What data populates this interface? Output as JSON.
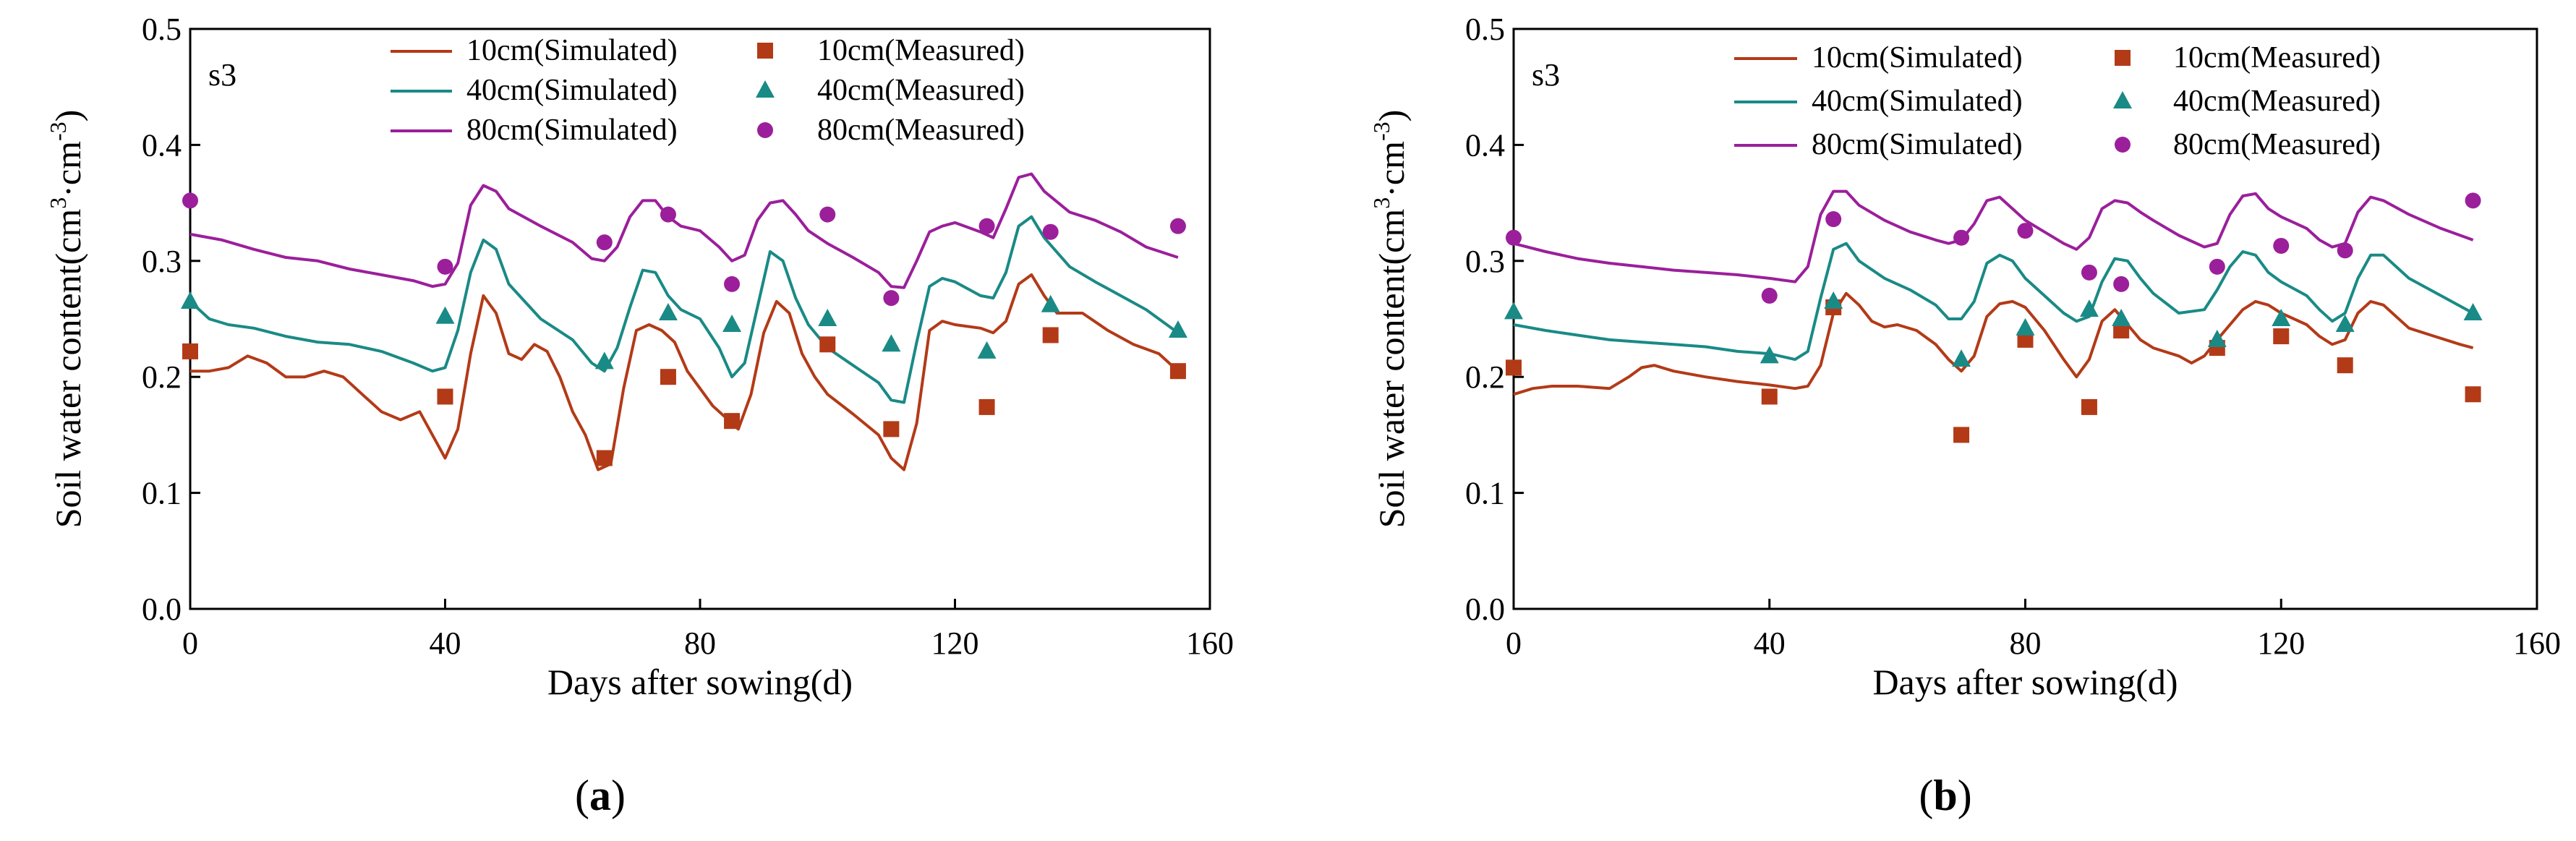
{
  "colors": {
    "s10": "#b33a17",
    "s40": "#1a8a86",
    "s80": "#9b1f9b",
    "axis": "#000000"
  },
  "chart_data": [
    {
      "type": "line",
      "panel_label": "s3",
      "caption_letter": "a",
      "caption_open": "(",
      "caption_close": ")",
      "xlabel": "Days after sowing(d)",
      "ylabel": "Soil water content(cm",
      "ylabel_sup1": "3",
      "ylabel_mid": "·cm",
      "ylabel_sup2": "-3",
      "ylabel_end": ")",
      "xlim": [
        0,
        160
      ],
      "ylim": [
        0.0,
        0.5
      ],
      "xticks": [
        "0",
        "40",
        "80",
        "120",
        "160"
      ],
      "yticks": [
        "0.0",
        "0.1",
        "0.2",
        "0.3",
        "0.4",
        "0.5"
      ],
      "series": [
        {
          "name": "10cm(Simulated)",
          "kind": "line",
          "color_key": "s10",
          "x": [
            0,
            3,
            6,
            9,
            12,
            15,
            18,
            21,
            24,
            27,
            30,
            33,
            36,
            39,
            40,
            42,
            44,
            46,
            48,
            50,
            52,
            54,
            56,
            58,
            60,
            62,
            64,
            66,
            68,
            70,
            72,
            74,
            76,
            78,
            80,
            82,
            84,
            86,
            88,
            90,
            92,
            94,
            96,
            98,
            100,
            104,
            108,
            110,
            112,
            114,
            116,
            118,
            120,
            124,
            126,
            128,
            130,
            132,
            134,
            136,
            138,
            140,
            144,
            148,
            152,
            155
          ],
          "y": [
            0.205,
            0.205,
            0.208,
            0.218,
            0.212,
            0.2,
            0.2,
            0.205,
            0.2,
            0.185,
            0.17,
            0.163,
            0.17,
            0.14,
            0.13,
            0.155,
            0.22,
            0.27,
            0.255,
            0.22,
            0.215,
            0.228,
            0.222,
            0.2,
            0.17,
            0.15,
            0.12,
            0.125,
            0.19,
            0.24,
            0.245,
            0.24,
            0.23,
            0.205,
            0.19,
            0.175,
            0.165,
            0.155,
            0.185,
            0.238,
            0.265,
            0.255,
            0.22,
            0.2,
            0.185,
            0.168,
            0.15,
            0.13,
            0.12,
            0.16,
            0.24,
            0.248,
            0.245,
            0.242,
            0.238,
            0.248,
            0.28,
            0.288,
            0.27,
            0.255,
            0.255,
            0.255,
            0.24,
            0.228,
            0.22,
            0.205
          ]
        },
        {
          "name": "40cm(Simulated)",
          "kind": "line",
          "color_key": "s40",
          "x": [
            0,
            3,
            6,
            10,
            15,
            20,
            25,
            30,
            35,
            38,
            40,
            42,
            44,
            46,
            48,
            50,
            55,
            60,
            63,
            65,
            67,
            69,
            71,
            73,
            75,
            77,
            80,
            83,
            85,
            87,
            89,
            91,
            93,
            95,
            97,
            100,
            104,
            108,
            110,
            112,
            114,
            116,
            118,
            120,
            124,
            126,
            128,
            130,
            132,
            134,
            138,
            142,
            146,
            150,
            155
          ],
          "y": [
            0.265,
            0.25,
            0.245,
            0.242,
            0.235,
            0.23,
            0.228,
            0.222,
            0.212,
            0.205,
            0.208,
            0.24,
            0.29,
            0.318,
            0.31,
            0.28,
            0.25,
            0.232,
            0.212,
            0.205,
            0.225,
            0.26,
            0.292,
            0.29,
            0.27,
            0.258,
            0.25,
            0.225,
            0.2,
            0.212,
            0.26,
            0.308,
            0.3,
            0.268,
            0.245,
            0.225,
            0.21,
            0.195,
            0.18,
            0.178,
            0.23,
            0.278,
            0.285,
            0.282,
            0.27,
            0.268,
            0.29,
            0.33,
            0.338,
            0.32,
            0.295,
            0.282,
            0.27,
            0.258,
            0.238
          ]
        },
        {
          "name": "80cm(Simulated)",
          "kind": "line",
          "color_key": "s80",
          "x": [
            0,
            5,
            10,
            15,
            20,
            25,
            30,
            35,
            38,
            40,
            42,
            44,
            46,
            48,
            50,
            55,
            60,
            63,
            65,
            67,
            69,
            71,
            73,
            75,
            77,
            80,
            83,
            85,
            87,
            89,
            91,
            93,
            95,
            97,
            100,
            104,
            108,
            110,
            112,
            114,
            116,
            118,
            120,
            124,
            126,
            128,
            130,
            132,
            134,
            138,
            142,
            146,
            150,
            155
          ],
          "y": [
            0.323,
            0.318,
            0.31,
            0.303,
            0.3,
            0.293,
            0.288,
            0.283,
            0.278,
            0.28,
            0.298,
            0.348,
            0.365,
            0.36,
            0.345,
            0.33,
            0.316,
            0.302,
            0.3,
            0.312,
            0.338,
            0.352,
            0.352,
            0.338,
            0.33,
            0.326,
            0.312,
            0.3,
            0.305,
            0.335,
            0.35,
            0.352,
            0.34,
            0.326,
            0.315,
            0.303,
            0.29,
            0.278,
            0.277,
            0.3,
            0.325,
            0.33,
            0.333,
            0.325,
            0.32,
            0.345,
            0.372,
            0.375,
            0.36,
            0.342,
            0.335,
            0.325,
            0.312,
            0.303
          ]
        },
        {
          "name": "10cm(Measured)",
          "kind": "scatter",
          "marker": "square",
          "color_key": "s10",
          "x": [
            0,
            40,
            65,
            75,
            85,
            100,
            110,
            125,
            135,
            155
          ],
          "y": [
            0.222,
            0.183,
            0.13,
            0.2,
            0.162,
            0.228,
            0.155,
            0.174,
            0.236,
            0.205
          ]
        },
        {
          "name": "40cm(Measured)",
          "kind": "scatter",
          "marker": "triangle",
          "color_key": "s40",
          "x": [
            0,
            40,
            65,
            75,
            85,
            100,
            110,
            125,
            135,
            155
          ],
          "y": [
            0.265,
            0.252,
            0.213,
            0.255,
            0.245,
            0.25,
            0.228,
            0.222,
            0.262,
            0.24
          ]
        },
        {
          "name": "80cm(Measured)",
          "kind": "scatter",
          "marker": "circle",
          "color_key": "s80",
          "x": [
            0,
            40,
            65,
            75,
            85,
            100,
            110,
            125,
            135,
            155
          ],
          "y": [
            0.352,
            0.295,
            0.316,
            0.34,
            0.28,
            0.34,
            0.268,
            0.33,
            0.325,
            0.33
          ]
        }
      ]
    },
    {
      "type": "line",
      "panel_label": "s3",
      "caption_letter": "b",
      "caption_open": "(",
      "caption_close": ")",
      "xlabel": "Days after sowing(d)",
      "ylabel": "Soil water content(cm",
      "ylabel_sup1": "3",
      "ylabel_mid": "·cm",
      "ylabel_sup2": "-3",
      "ylabel_end": ")",
      "xlim": [
        0,
        160
      ],
      "ylim": [
        0.0,
        0.5
      ],
      "xticks": [
        "0",
        "40",
        "80",
        "120",
        "160"
      ],
      "yticks": [
        "0.0",
        "0.1",
        "0.2",
        "0.3",
        "0.4",
        "0.5"
      ],
      "series": [
        {
          "name": "10cm(Simulated)",
          "kind": "line",
          "color_key": "s10",
          "x": [
            0,
            3,
            6,
            10,
            15,
            18,
            20,
            22,
            25,
            30,
            35,
            40,
            44,
            46,
            48,
            50,
            52,
            54,
            56,
            58,
            60,
            63,
            66,
            68,
            70,
            72,
            74,
            76,
            78,
            80,
            83,
            86,
            88,
            90,
            92,
            94,
            96,
            98,
            100,
            104,
            106,
            108,
            110,
            112,
            114,
            116,
            118,
            120,
            124,
            126,
            128,
            130,
            132,
            134,
            136,
            138,
            140,
            144,
            148,
            150
          ],
          "y": [
            0.185,
            0.19,
            0.192,
            0.192,
            0.19,
            0.2,
            0.208,
            0.21,
            0.205,
            0.2,
            0.196,
            0.193,
            0.19,
            0.192,
            0.21,
            0.255,
            0.272,
            0.262,
            0.248,
            0.243,
            0.245,
            0.24,
            0.228,
            0.215,
            0.205,
            0.218,
            0.252,
            0.263,
            0.265,
            0.26,
            0.24,
            0.215,
            0.2,
            0.215,
            0.248,
            0.258,
            0.245,
            0.232,
            0.225,
            0.218,
            0.212,
            0.218,
            0.232,
            0.245,
            0.258,
            0.265,
            0.262,
            0.255,
            0.245,
            0.235,
            0.228,
            0.232,
            0.255,
            0.265,
            0.262,
            0.252,
            0.242,
            0.235,
            0.228,
            0.225
          ]
        },
        {
          "name": "40cm(Simulated)",
          "kind": "line",
          "color_key": "s40",
          "x": [
            0,
            5,
            10,
            15,
            20,
            25,
            30,
            35,
            40,
            44,
            46,
            48,
            50,
            52,
            54,
            58,
            62,
            66,
            68,
            70,
            72,
            74,
            76,
            78,
            80,
            83,
            86,
            88,
            90,
            92,
            94,
            96,
            98,
            100,
            104,
            108,
            110,
            112,
            114,
            116,
            118,
            120,
            124,
            126,
            128,
            130,
            132,
            134,
            136,
            140,
            145,
            150
          ],
          "y": [
            0.245,
            0.24,
            0.236,
            0.232,
            0.23,
            0.228,
            0.226,
            0.222,
            0.22,
            0.215,
            0.222,
            0.268,
            0.31,
            0.315,
            0.3,
            0.285,
            0.275,
            0.262,
            0.25,
            0.25,
            0.265,
            0.298,
            0.305,
            0.3,
            0.285,
            0.27,
            0.255,
            0.248,
            0.252,
            0.282,
            0.302,
            0.3,
            0.285,
            0.272,
            0.255,
            0.258,
            0.275,
            0.295,
            0.308,
            0.305,
            0.29,
            0.282,
            0.27,
            0.258,
            0.248,
            0.255,
            0.285,
            0.305,
            0.305,
            0.285,
            0.27,
            0.255
          ]
        },
        {
          "name": "80cm(Simulated)",
          "kind": "line",
          "color_key": "s80",
          "x": [
            0,
            5,
            10,
            15,
            20,
            25,
            30,
            35,
            40,
            44,
            46,
            48,
            50,
            52,
            54,
            58,
            62,
            66,
            68,
            70,
            72,
            74,
            76,
            78,
            80,
            83,
            86,
            88,
            90,
            92,
            94,
            96,
            98,
            100,
            104,
            108,
            110,
            112,
            114,
            116,
            118,
            120,
            124,
            126,
            128,
            130,
            132,
            134,
            136,
            140,
            145,
            150
          ],
          "y": [
            0.315,
            0.308,
            0.302,
            0.298,
            0.295,
            0.292,
            0.29,
            0.288,
            0.285,
            0.282,
            0.295,
            0.34,
            0.36,
            0.36,
            0.348,
            0.335,
            0.325,
            0.318,
            0.315,
            0.318,
            0.332,
            0.352,
            0.355,
            0.345,
            0.335,
            0.325,
            0.315,
            0.31,
            0.32,
            0.345,
            0.352,
            0.35,
            0.342,
            0.335,
            0.322,
            0.312,
            0.315,
            0.34,
            0.356,
            0.358,
            0.345,
            0.338,
            0.328,
            0.318,
            0.312,
            0.315,
            0.342,
            0.355,
            0.352,
            0.34,
            0.328,
            0.318
          ]
        },
        {
          "name": "10cm(Measured)",
          "kind": "scatter",
          "marker": "square",
          "color_key": "s10",
          "x": [
            0,
            40,
            50,
            70,
            80,
            90,
            95,
            110,
            120,
            130,
            150
          ],
          "y": [
            0.208,
            0.183,
            0.26,
            0.15,
            0.232,
            0.174,
            0.24,
            0.225,
            0.235,
            0.21,
            0.185
          ]
        },
        {
          "name": "40cm(Measured)",
          "kind": "scatter",
          "marker": "triangle",
          "color_key": "s40",
          "x": [
            0,
            40,
            50,
            70,
            80,
            90,
            95,
            110,
            120,
            130,
            150
          ],
          "y": [
            0.256,
            0.218,
            0.265,
            0.215,
            0.242,
            0.258,
            0.25,
            0.232,
            0.25,
            0.245,
            0.255
          ]
        },
        {
          "name": "80cm(Measured)",
          "kind": "scatter",
          "marker": "circle",
          "color_key": "s80",
          "x": [
            0,
            40,
            50,
            70,
            80,
            90,
            95,
            110,
            120,
            130,
            150
          ],
          "y": [
            0.32,
            0.27,
            0.336,
            0.32,
            0.326,
            0.29,
            0.28,
            0.295,
            0.313,
            0.309,
            0.352
          ]
        }
      ]
    }
  ]
}
